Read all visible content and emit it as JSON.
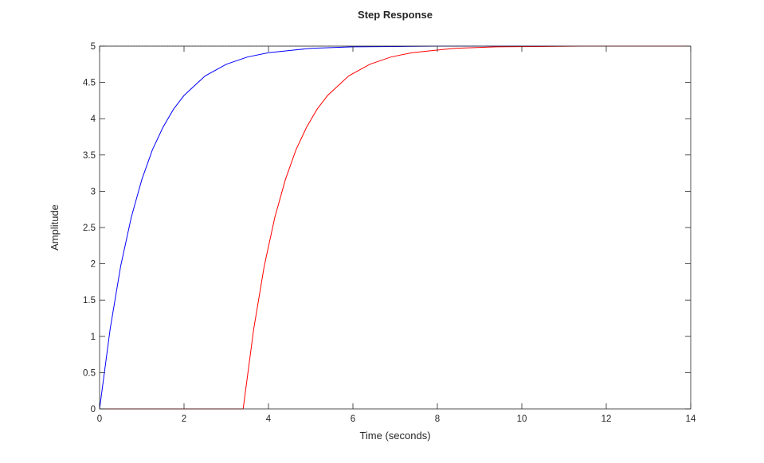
{
  "chart_data": {
    "type": "line",
    "title": "Step Response",
    "xlabel": "Time (seconds)",
    "ylabel": "Amplitude",
    "xlim": [
      0,
      14
    ],
    "ylim": [
      0,
      5
    ],
    "x_ticks": [
      "0",
      "2",
      "4",
      "6",
      "8",
      "10",
      "12",
      "14"
    ],
    "y_ticks": [
      "0",
      "0.5",
      "1",
      "1.5",
      "2",
      "2.5",
      "3",
      "3.5",
      "4",
      "4.5",
      "5"
    ],
    "grid": false,
    "reference_line": {
      "y": 5,
      "style": "dotted"
    },
    "series": [
      {
        "color": "#0000ff",
        "x": [
          0,
          0.25,
          0.5,
          0.75,
          1,
          1.25,
          1.5,
          1.75,
          2,
          2.5,
          3,
          3.5,
          4,
          4.5,
          5,
          6,
          7,
          8,
          9,
          10,
          12,
          14
        ],
        "y": [
          0,
          1.1,
          1.97,
          2.64,
          3.16,
          3.57,
          3.88,
          4.13,
          4.32,
          4.59,
          4.75,
          4.85,
          4.91,
          4.94,
          4.97,
          4.99,
          4.995,
          5.0,
          5.0,
          5.0,
          5.0,
          5.0
        ]
      },
      {
        "color": "#ff0000",
        "x": [
          0,
          3.4,
          3.65,
          3.9,
          4.15,
          4.4,
          4.65,
          4.9,
          5.15,
          5.4,
          5.9,
          6.4,
          6.9,
          7.4,
          7.9,
          8.4,
          9.4,
          10.4,
          11.4,
          12,
          14
        ],
        "y": [
          0,
          0,
          1.1,
          1.97,
          2.64,
          3.16,
          3.57,
          3.88,
          4.13,
          4.32,
          4.59,
          4.75,
          4.85,
          4.91,
          4.94,
          4.97,
          4.99,
          4.995,
          5.0,
          5.0,
          5.0
        ]
      }
    ]
  }
}
